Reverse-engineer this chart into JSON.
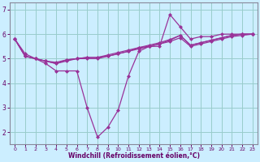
{
  "title": "",
  "xlabel": "Windchill (Refroidissement éolien,°C)",
  "ylabel": "",
  "bg_color": "#cceeff",
  "line_color": "#993399",
  "grid_color": "#99cccc",
  "axis_color": "#888899",
  "text_color": "#660066",
  "xlabel_color": "#660066",
  "xlim": [
    -0.5,
    23.5
  ],
  "ylim": [
    1.5,
    7.3
  ],
  "yticks": [
    2,
    3,
    4,
    5,
    6,
    7
  ],
  "xticks": [
    0,
    1,
    2,
    3,
    4,
    5,
    6,
    7,
    8,
    9,
    10,
    11,
    12,
    13,
    14,
    15,
    16,
    17,
    18,
    19,
    20,
    21,
    22,
    23
  ],
  "series": [
    [
      5.8,
      5.2,
      5.0,
      4.8,
      4.5,
      4.5,
      4.5,
      3.0,
      1.8,
      2.2,
      2.9,
      4.3,
      5.3,
      5.5,
      5.5,
      6.8,
      6.3,
      5.8,
      5.9,
      5.9,
      6.0,
      6.0,
      6.0,
      6.0
    ],
    [
      5.8,
      5.1,
      5.0,
      4.9,
      4.8,
      4.9,
      5.0,
      5.0,
      5.0,
      5.1,
      5.2,
      5.3,
      5.4,
      5.5,
      5.6,
      5.7,
      5.85,
      5.5,
      5.6,
      5.7,
      5.8,
      5.9,
      5.95,
      6.0
    ],
    [
      5.8,
      5.1,
      5.0,
      4.9,
      4.8,
      4.95,
      5.0,
      5.05,
      5.05,
      5.1,
      5.2,
      5.3,
      5.45,
      5.5,
      5.6,
      5.75,
      5.95,
      5.55,
      5.65,
      5.75,
      5.85,
      5.95,
      6.0,
      6.0
    ],
    [
      5.8,
      5.1,
      5.0,
      4.9,
      4.85,
      4.95,
      5.0,
      5.05,
      5.05,
      5.15,
      5.25,
      5.35,
      5.45,
      5.55,
      5.65,
      5.78,
      5.95,
      5.55,
      5.65,
      5.75,
      5.85,
      5.95,
      6.0,
      6.0
    ]
  ]
}
